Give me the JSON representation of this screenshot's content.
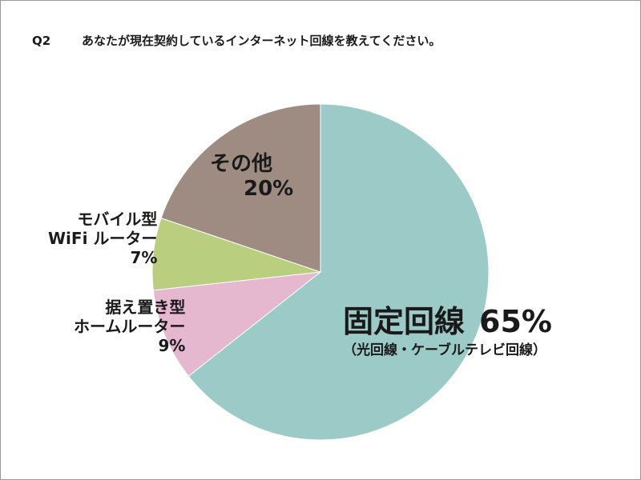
{
  "question": {
    "number": "Q2",
    "text": "あなたが現在契約しているインターネット回線を教えてください。"
  },
  "chart_data": {
    "type": "pie",
    "title": "あなたが現在契約しているインターネット回線を教えてください。",
    "slices": [
      {
        "label": "固定回線",
        "sublabel": "（光回線・ケーブルテレビ回線）",
        "value": 65,
        "value_label": "65%",
        "color": "#9ccac6"
      },
      {
        "label_lines": [
          "据え置き型",
          "ホームルーター"
        ],
        "value": 9,
        "value_label": "9%",
        "color": "#e6b8cf"
      },
      {
        "label_lines": [
          "モバイル型",
          "WiFi ルーター"
        ],
        "value": 7,
        "value_label": "7%",
        "color": "#b9cf7f"
      },
      {
        "label_lines": [
          "その他"
        ],
        "value": 20,
        "value_label": "20%",
        "color": "#9e8b82"
      }
    ],
    "start": "top",
    "direction": "clockwise",
    "legend": "none"
  }
}
